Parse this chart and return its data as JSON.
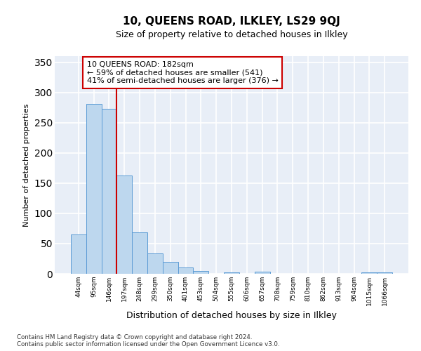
{
  "title_line1": "10, QUEENS ROAD, ILKLEY, LS29 9QJ",
  "title_line2": "Size of property relative to detached houses in Ilkley",
  "xlabel": "Distribution of detached houses by size in Ilkley",
  "ylabel": "Number of detached properties",
  "categories": [
    "44sqm",
    "95sqm",
    "146sqm",
    "197sqm",
    "248sqm",
    "299sqm",
    "350sqm",
    "401sqm",
    "453sqm",
    "504sqm",
    "555sqm",
    "606sqm",
    "657sqm",
    "708sqm",
    "759sqm",
    "810sqm",
    "862sqm",
    "913sqm",
    "964sqm",
    "1015sqm",
    "1066sqm"
  ],
  "values": [
    65,
    281,
    273,
    163,
    68,
    34,
    20,
    10,
    5,
    0,
    2,
    0,
    3,
    0,
    0,
    0,
    0,
    0,
    0,
    2,
    2
  ],
  "bar_color": "#bdd7ee",
  "bar_edge_color": "#5b9bd5",
  "red_line_after_index": 2,
  "red_line_color": "#cc0000",
  "annotation_text": "10 QUEENS ROAD: 182sqm\n← 59% of detached houses are smaller (541)\n41% of semi-detached houses are larger (376) →",
  "annotation_box_color": "white",
  "annotation_box_edge_color": "#cc0000",
  "ylim": [
    0,
    360
  ],
  "yticks": [
    0,
    50,
    100,
    150,
    200,
    250,
    300,
    350
  ],
  "background_color": "#e8eef7",
  "grid_color": "white",
  "footnote": "Contains HM Land Registry data © Crown copyright and database right 2024.\nContains public sector information licensed under the Open Government Licence v3.0."
}
